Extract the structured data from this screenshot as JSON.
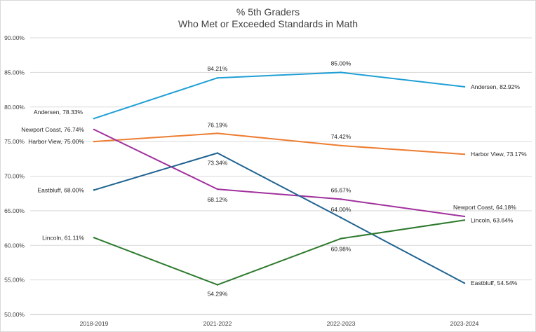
{
  "chart_data": {
    "type": "line",
    "title": "% 5th Graders",
    "subtitle": "Who Met or Exceeded Standards in Math",
    "xlabel": "",
    "ylabel": "",
    "categories": [
      "2018-2019",
      "2021-2022",
      "2022-2023",
      "2023-2024"
    ],
    "ylim": [
      50,
      90
    ],
    "yticks": [
      "50.00%",
      "55.00%",
      "60.00%",
      "65.00%",
      "70.00%",
      "75.00%",
      "80.00%",
      "85.00%",
      "90.00%"
    ],
    "grid": true,
    "legend": "none",
    "series": [
      {
        "name": "Andersen",
        "color": "#1f9fd5",
        "values": [
          78.33,
          84.21,
          85.0,
          82.92
        ],
        "labels": [
          "Andersen, 78.33%",
          "84.21%",
          "85.00%",
          "Andersen, 82.92%"
        ]
      },
      {
        "name": "Harbor View",
        "color": "#ed7d31",
        "values": [
          75.0,
          76.19,
          74.42,
          73.17
        ],
        "labels": [
          "Harbor View, 75.00%",
          "76.19%",
          "74.42%",
          "Harbor View, 73.17%"
        ]
      },
      {
        "name": "Newport Coast",
        "color": "#a0309c",
        "values": [
          76.74,
          68.12,
          66.67,
          64.18
        ],
        "labels": [
          "Newport Coast, 76.74%",
          "68.12%",
          "66.67%",
          "Newport Coast, 64.18%"
        ]
      },
      {
        "name": "Eastbluff",
        "color": "#1f6391",
        "values": [
          68.0,
          73.34,
          64.0,
          54.54
        ],
        "labels": [
          "Eastbluff, 68.00%",
          "73.34%",
          "64.00%",
          "Eastbluff, 54.54%"
        ]
      },
      {
        "name": "Lincoln",
        "color": "#2e7a2e",
        "values": [
          61.11,
          54.29,
          60.98,
          63.64
        ],
        "labels": [
          "Lincoln, 61.11%",
          "54.29%",
          "60.98%",
          "Lincoln, 63.64%"
        ]
      }
    ]
  }
}
